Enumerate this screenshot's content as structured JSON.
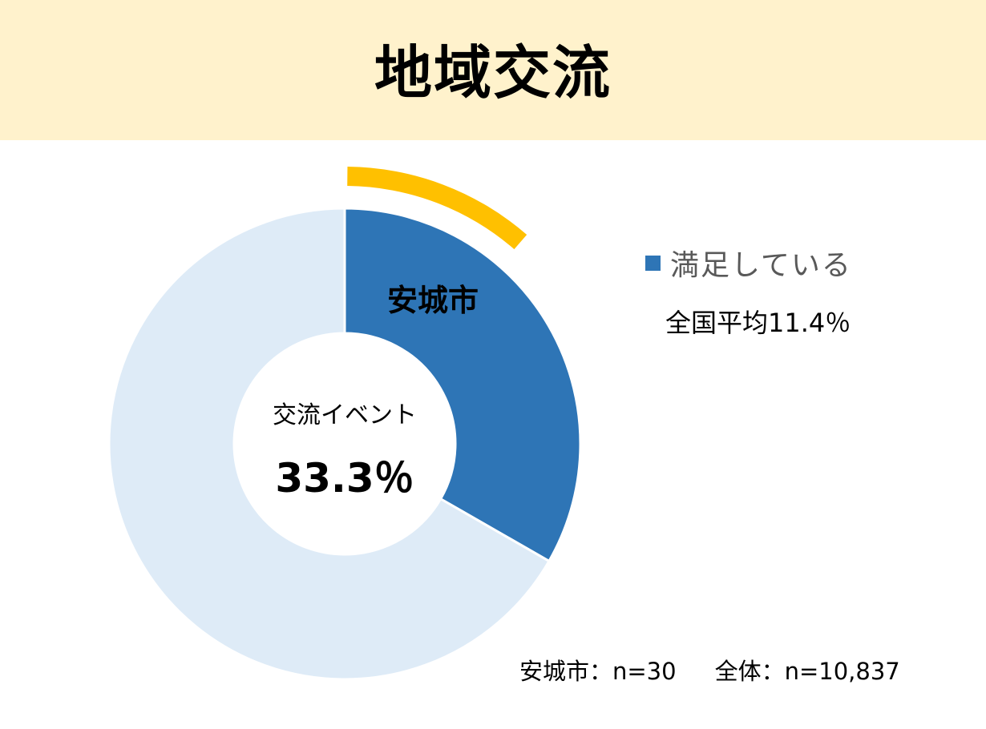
{
  "header": {
    "title": "地域交流",
    "background": "#FFF2CC"
  },
  "chart_data": {
    "type": "pie",
    "subtype": "donut",
    "series": [
      {
        "name": "満足している",
        "value": 33.3,
        "color": "#2E75B6"
      },
      {
        "value": 66.7,
        "color": "#DEEBF7"
      }
    ],
    "segment_label": "安城市",
    "center_label": "交流イベント",
    "center_value": "33.3％",
    "national_average": {
      "value": 11.4,
      "label": "全国平均11.4％",
      "color": "#FFC000"
    },
    "legend": {
      "position": "right",
      "entries": [
        {
          "label": "満足している",
          "color": "#2E75B6"
        }
      ]
    }
  },
  "footer": {
    "city_n": "安城市：n=30",
    "total_n": "全体：n=10,837"
  }
}
